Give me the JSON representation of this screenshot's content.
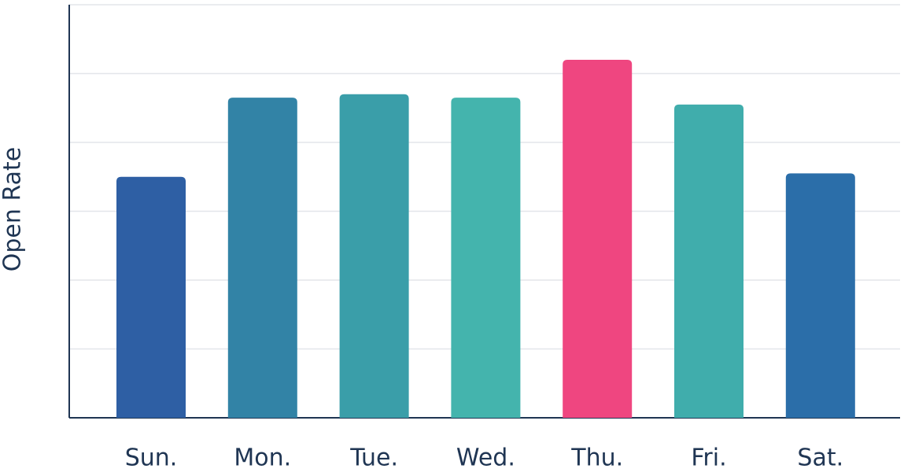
{
  "chart_data": {
    "type": "bar",
    "y_label": "Open Rate",
    "categories": [
      "Sun.",
      "Mon.",
      "Tue.",
      "Wed.",
      "Thu.",
      "Fri.",
      "Sat."
    ],
    "values": [
      3.5,
      4.65,
      4.7,
      4.65,
      5.2,
      4.55,
      3.55
    ],
    "colors": [
      "#2e5fa4",
      "#3283a6",
      "#3a9ea9",
      "#44b4ad",
      "#ef4680",
      "#40adac",
      "#2b6ea9"
    ],
    "ylim": [
      0,
      6
    ],
    "yticks": [
      1,
      2,
      3,
      4,
      5,
      6
    ],
    "grid": true
  }
}
